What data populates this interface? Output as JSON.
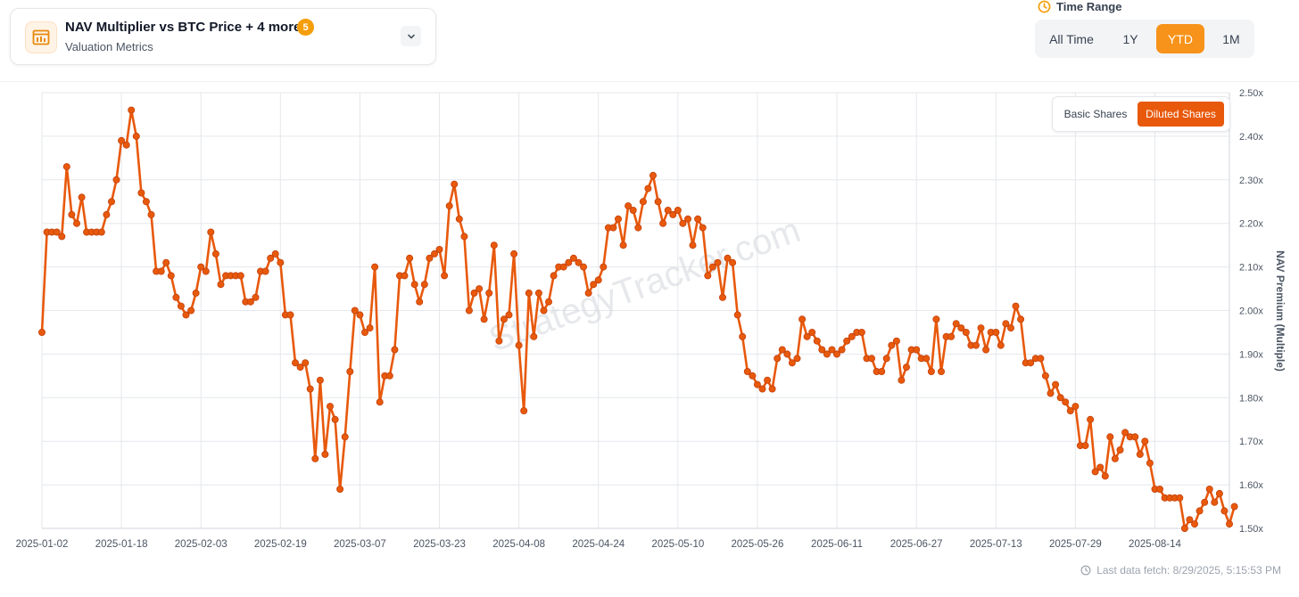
{
  "metric_selector": {
    "title": "NAV Multiplier vs BTC Price + 4 more",
    "count_badge": "5",
    "subtitle": "Valuation Metrics",
    "icon": "chart-table-icon",
    "dropdown_icon": "chevron-down-icon"
  },
  "time_range": {
    "label": "Time Range",
    "icon": "clock-icon",
    "options": [
      "All Time",
      "1Y",
      "YTD",
      "1M"
    ],
    "selected": "YTD"
  },
  "share_toggle": {
    "options": [
      "Basic Shares",
      "Diluted Shares"
    ],
    "selected": "Diluted Shares"
  },
  "watermark": "StrategyTracker.com",
  "footer": {
    "icon": "clock-icon",
    "last_fetch": "Last data fetch: 8/29/2025, 5:15:53 PM"
  },
  "colors": {
    "line": "#e8590c",
    "accent": "#f7931a",
    "grid": "#e5e7eb"
  },
  "chart_data": {
    "type": "line",
    "ylabel": "NAV Premium (Multiple)",
    "y_tick_labels": [
      "1.50x",
      "1.60x",
      "1.70x",
      "1.80x",
      "1.90x",
      "2.00x",
      "2.10x",
      "2.20x",
      "2.30x",
      "2.40x",
      "2.50x"
    ],
    "ylim": [
      1.5,
      2.5
    ],
    "y_axis_position": "right",
    "x_tick_labels": [
      "2025-01-02",
      "2025-01-18",
      "2025-02-03",
      "2025-02-19",
      "2025-03-07",
      "2025-03-23",
      "2025-04-08",
      "2025-04-24",
      "2025-05-10",
      "2025-05-26",
      "2025-06-11",
      "2025-06-27",
      "2025-07-13",
      "2025-07-29",
      "2025-08-14"
    ],
    "xlim": [
      "2025-01-02",
      "2025-08-29"
    ],
    "grid": true,
    "series": [
      {
        "points": [
          [
            "2025-01-02",
            1.95
          ],
          [
            "2025-01-03",
            2.18
          ],
          [
            "2025-01-04",
            2.18
          ],
          [
            "2025-01-05",
            2.18
          ],
          [
            "2025-01-06",
            2.17
          ],
          [
            "2025-01-07",
            2.33
          ],
          [
            "2025-01-08",
            2.22
          ],
          [
            "2025-01-09",
            2.2
          ],
          [
            "2025-01-10",
            2.26
          ],
          [
            "2025-01-11",
            2.18
          ],
          [
            "2025-01-12",
            2.18
          ],
          [
            "2025-01-13",
            2.18
          ],
          [
            "2025-01-14",
            2.18
          ],
          [
            "2025-01-15",
            2.22
          ],
          [
            "2025-01-16",
            2.25
          ],
          [
            "2025-01-17",
            2.3
          ],
          [
            "2025-01-18",
            2.39
          ],
          [
            "2025-01-19",
            2.38
          ],
          [
            "2025-01-20",
            2.46
          ],
          [
            "2025-01-21",
            2.4
          ],
          [
            "2025-01-22",
            2.27
          ],
          [
            "2025-01-23",
            2.25
          ],
          [
            "2025-01-24",
            2.22
          ],
          [
            "2025-01-25",
            2.09
          ],
          [
            "2025-01-26",
            2.09
          ],
          [
            "2025-01-27",
            2.11
          ],
          [
            "2025-01-28",
            2.08
          ],
          [
            "2025-01-29",
            2.03
          ],
          [
            "2025-01-30",
            2.01
          ],
          [
            "2025-01-31",
            1.99
          ],
          [
            "2025-02-01",
            2.0
          ],
          [
            "2025-02-02",
            2.04
          ],
          [
            "2025-02-03",
            2.1
          ],
          [
            "2025-02-04",
            2.09
          ],
          [
            "2025-02-05",
            2.18
          ],
          [
            "2025-02-06",
            2.13
          ],
          [
            "2025-02-07",
            2.06
          ],
          [
            "2025-02-08",
            2.08
          ],
          [
            "2025-02-09",
            2.08
          ],
          [
            "2025-02-10",
            2.08
          ],
          [
            "2025-02-11",
            2.08
          ],
          [
            "2025-02-12",
            2.02
          ],
          [
            "2025-02-13",
            2.02
          ],
          [
            "2025-02-14",
            2.03
          ],
          [
            "2025-02-15",
            2.09
          ],
          [
            "2025-02-16",
            2.09
          ],
          [
            "2025-02-17",
            2.12
          ],
          [
            "2025-02-18",
            2.13
          ],
          [
            "2025-02-19",
            2.11
          ],
          [
            "2025-02-20",
            1.99
          ],
          [
            "2025-02-21",
            1.99
          ],
          [
            "2025-02-22",
            1.88
          ],
          [
            "2025-02-23",
            1.87
          ],
          [
            "2025-02-24",
            1.88
          ],
          [
            "2025-02-25",
            1.82
          ],
          [
            "2025-02-26",
            1.66
          ],
          [
            "2025-02-27",
            1.84
          ],
          [
            "2025-02-28",
            1.67
          ],
          [
            "2025-03-01",
            1.78
          ],
          [
            "2025-03-02",
            1.75
          ],
          [
            "2025-03-03",
            1.59
          ],
          [
            "2025-03-04",
            1.71
          ],
          [
            "2025-03-05",
            1.86
          ],
          [
            "2025-03-06",
            2.0
          ],
          [
            "2025-03-07",
            1.99
          ],
          [
            "2025-03-08",
            1.95
          ],
          [
            "2025-03-09",
            1.96
          ],
          [
            "2025-03-10",
            2.1
          ],
          [
            "2025-03-11",
            1.79
          ],
          [
            "2025-03-12",
            1.85
          ],
          [
            "2025-03-13",
            1.85
          ],
          [
            "2025-03-14",
            1.91
          ],
          [
            "2025-03-15",
            2.08
          ],
          [
            "2025-03-16",
            2.08
          ],
          [
            "2025-03-17",
            2.12
          ],
          [
            "2025-03-18",
            2.06
          ],
          [
            "2025-03-19",
            2.02
          ],
          [
            "2025-03-20",
            2.06
          ],
          [
            "2025-03-21",
            2.12
          ],
          [
            "2025-03-22",
            2.13
          ],
          [
            "2025-03-23",
            2.14
          ],
          [
            "2025-03-24",
            2.08
          ],
          [
            "2025-03-25",
            2.24
          ],
          [
            "2025-03-26",
            2.29
          ],
          [
            "2025-03-27",
            2.21
          ],
          [
            "2025-03-28",
            2.17
          ],
          [
            "2025-03-29",
            2.0
          ],
          [
            "2025-03-30",
            2.04
          ],
          [
            "2025-03-31",
            2.05
          ],
          [
            "2025-04-01",
            1.98
          ],
          [
            "2025-04-02",
            2.04
          ],
          [
            "2025-04-03",
            2.15
          ],
          [
            "2025-04-04",
            1.93
          ],
          [
            "2025-04-05",
            1.98
          ],
          [
            "2025-04-06",
            1.99
          ],
          [
            "2025-04-07",
            2.13
          ],
          [
            "2025-04-08",
            1.92
          ],
          [
            "2025-04-09",
            1.77
          ],
          [
            "2025-04-10",
            2.04
          ],
          [
            "2025-04-11",
            1.94
          ],
          [
            "2025-04-12",
            2.04
          ],
          [
            "2025-04-13",
            2.0
          ],
          [
            "2025-04-14",
            2.02
          ],
          [
            "2025-04-15",
            2.08
          ],
          [
            "2025-04-16",
            2.1
          ],
          [
            "2025-04-17",
            2.1
          ],
          [
            "2025-04-18",
            2.11
          ],
          [
            "2025-04-19",
            2.12
          ],
          [
            "2025-04-20",
            2.11
          ],
          [
            "2025-04-21",
            2.1
          ],
          [
            "2025-04-22",
            2.04
          ],
          [
            "2025-04-23",
            2.06
          ],
          [
            "2025-04-24",
            2.07
          ],
          [
            "2025-04-25",
            2.1
          ],
          [
            "2025-04-26",
            2.19
          ],
          [
            "2025-04-27",
            2.19
          ],
          [
            "2025-04-28",
            2.21
          ],
          [
            "2025-04-29",
            2.15
          ],
          [
            "2025-04-30",
            2.24
          ],
          [
            "2025-05-01",
            2.23
          ],
          [
            "2025-05-02",
            2.19
          ],
          [
            "2025-05-03",
            2.25
          ],
          [
            "2025-05-04",
            2.28
          ],
          [
            "2025-05-05",
            2.31
          ],
          [
            "2025-05-06",
            2.25
          ],
          [
            "2025-05-07",
            2.2
          ],
          [
            "2025-05-08",
            2.23
          ],
          [
            "2025-05-09",
            2.22
          ],
          [
            "2025-05-10",
            2.23
          ],
          [
            "2025-05-11",
            2.2
          ],
          [
            "2025-05-12",
            2.21
          ],
          [
            "2025-05-13",
            2.15
          ],
          [
            "2025-05-14",
            2.21
          ],
          [
            "2025-05-15",
            2.19
          ],
          [
            "2025-05-16",
            2.08
          ],
          [
            "2025-05-17",
            2.1
          ],
          [
            "2025-05-18",
            2.11
          ],
          [
            "2025-05-19",
            2.03
          ],
          [
            "2025-05-20",
            2.12
          ],
          [
            "2025-05-21",
            2.11
          ],
          [
            "2025-05-22",
            1.99
          ],
          [
            "2025-05-23",
            1.94
          ],
          [
            "2025-05-24",
            1.86
          ],
          [
            "2025-05-25",
            1.85
          ],
          [
            "2025-05-26",
            1.83
          ],
          [
            "2025-05-27",
            1.82
          ],
          [
            "2025-05-28",
            1.84
          ],
          [
            "2025-05-29",
            1.82
          ],
          [
            "2025-05-30",
            1.89
          ],
          [
            "2025-05-31",
            1.91
          ],
          [
            "2025-06-01",
            1.9
          ],
          [
            "2025-06-02",
            1.88
          ],
          [
            "2025-06-03",
            1.89
          ],
          [
            "2025-06-04",
            1.98
          ],
          [
            "2025-06-05",
            1.94
          ],
          [
            "2025-06-06",
            1.95
          ],
          [
            "2025-06-07",
            1.93
          ],
          [
            "2025-06-08",
            1.91
          ],
          [
            "2025-06-09",
            1.9
          ],
          [
            "2025-06-10",
            1.91
          ],
          [
            "2025-06-11",
            1.9
          ],
          [
            "2025-06-12",
            1.91
          ],
          [
            "2025-06-13",
            1.93
          ],
          [
            "2025-06-14",
            1.94
          ],
          [
            "2025-06-15",
            1.95
          ],
          [
            "2025-06-16",
            1.95
          ],
          [
            "2025-06-17",
            1.89
          ],
          [
            "2025-06-18",
            1.89
          ],
          [
            "2025-06-19",
            1.86
          ],
          [
            "2025-06-20",
            1.86
          ],
          [
            "2025-06-21",
            1.89
          ],
          [
            "2025-06-22",
            1.92
          ],
          [
            "2025-06-23",
            1.93
          ],
          [
            "2025-06-24",
            1.84
          ],
          [
            "2025-06-25",
            1.87
          ],
          [
            "2025-06-26",
            1.91
          ],
          [
            "2025-06-27",
            1.91
          ],
          [
            "2025-06-28",
            1.89
          ],
          [
            "2025-06-29",
            1.89
          ],
          [
            "2025-06-30",
            1.86
          ],
          [
            "2025-07-01",
            1.98
          ],
          [
            "2025-07-02",
            1.86
          ],
          [
            "2025-07-03",
            1.94
          ],
          [
            "2025-07-04",
            1.94
          ],
          [
            "2025-07-05",
            1.97
          ],
          [
            "2025-07-06",
            1.96
          ],
          [
            "2025-07-07",
            1.95
          ],
          [
            "2025-07-08",
            1.92
          ],
          [
            "2025-07-09",
            1.92
          ],
          [
            "2025-07-10",
            1.96
          ],
          [
            "2025-07-11",
            1.91
          ],
          [
            "2025-07-12",
            1.95
          ],
          [
            "2025-07-13",
            1.95
          ],
          [
            "2025-07-14",
            1.92
          ],
          [
            "2025-07-15",
            1.97
          ],
          [
            "2025-07-16",
            1.96
          ],
          [
            "2025-07-17",
            2.01
          ],
          [
            "2025-07-18",
            1.98
          ],
          [
            "2025-07-19",
            1.88
          ],
          [
            "2025-07-20",
            1.88
          ],
          [
            "2025-07-21",
            1.89
          ],
          [
            "2025-07-22",
            1.89
          ],
          [
            "2025-07-23",
            1.85
          ],
          [
            "2025-07-24",
            1.81
          ],
          [
            "2025-07-25",
            1.83
          ],
          [
            "2025-07-26",
            1.8
          ],
          [
            "2025-07-27",
            1.79
          ],
          [
            "2025-07-28",
            1.77
          ],
          [
            "2025-07-29",
            1.78
          ],
          [
            "2025-07-30",
            1.69
          ],
          [
            "2025-07-31",
            1.69
          ],
          [
            "2025-08-01",
            1.75
          ],
          [
            "2025-08-02",
            1.63
          ],
          [
            "2025-08-03",
            1.64
          ],
          [
            "2025-08-04",
            1.62
          ],
          [
            "2025-08-05",
            1.71
          ],
          [
            "2025-08-06",
            1.66
          ],
          [
            "2025-08-07",
            1.68
          ],
          [
            "2025-08-08",
            1.72
          ],
          [
            "2025-08-09",
            1.71
          ],
          [
            "2025-08-10",
            1.71
          ],
          [
            "2025-08-11",
            1.67
          ],
          [
            "2025-08-12",
            1.7
          ],
          [
            "2025-08-13",
            1.65
          ],
          [
            "2025-08-14",
            1.59
          ],
          [
            "2025-08-15",
            1.59
          ],
          [
            "2025-08-16",
            1.57
          ],
          [
            "2025-08-17",
            1.57
          ],
          [
            "2025-08-18",
            1.57
          ],
          [
            "2025-08-19",
            1.57
          ],
          [
            "2025-08-20",
            1.5
          ],
          [
            "2025-08-21",
            1.52
          ],
          [
            "2025-08-22",
            1.51
          ],
          [
            "2025-08-23",
            1.54
          ],
          [
            "2025-08-24",
            1.56
          ],
          [
            "2025-08-25",
            1.59
          ],
          [
            "2025-08-26",
            1.56
          ],
          [
            "2025-08-27",
            1.58
          ],
          [
            "2025-08-28",
            1.54
          ],
          [
            "2025-08-29",
            1.51
          ],
          [
            "2025-08-30",
            1.55
          ]
        ]
      }
    ]
  }
}
